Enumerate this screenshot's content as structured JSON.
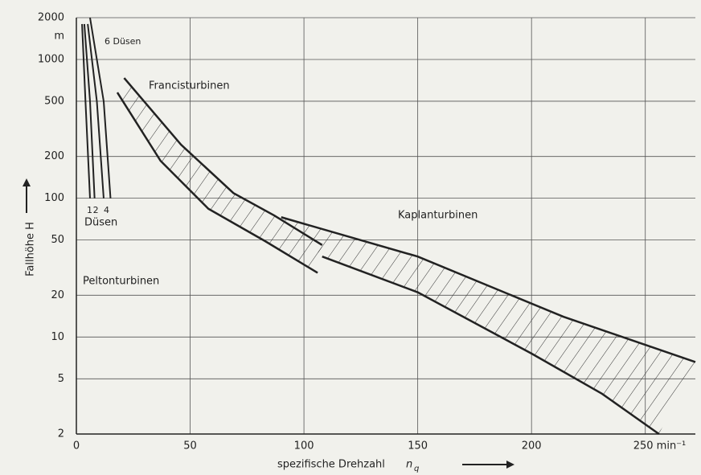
{
  "chart_data": {
    "type": "band",
    "xlabel": "spezifische Drehzahl",
    "xlabel_symbol": "n",
    "xlabel_subscript": "q",
    "ylabel": "Fallhöhe H",
    "y_unit": "m",
    "log_y": true,
    "grid": true,
    "color": "#222222",
    "xlim": [
      0,
      272
    ],
    "ylim": [
      2,
      2000
    ],
    "xticks": [
      0,
      50,
      100,
      150,
      200,
      {
        "value": 250,
        "label": "250 min⁻¹"
      }
    ],
    "yticks": [
      2,
      5,
      10,
      20,
      50,
      100,
      200,
      500,
      1000,
      2000
    ],
    "bands": [
      {
        "name": "Francisturbinen",
        "upper": {
          "x": [
            21,
            46,
            69,
            87,
            108
          ],
          "y": [
            735,
            243,
            109,
            75,
            46
          ]
        },
        "lower": {
          "x": [
            18,
            37,
            58,
            83,
            106
          ],
          "y": [
            578,
            186,
            84,
            49,
            29
          ]
        }
      },
      {
        "name": "Kaplanturbinen",
        "upper": {
          "x": [
            90,
            150,
            214,
            272
          ],
          "y": [
            73,
            38,
            14,
            6.6
          ]
        },
        "lower": {
          "x": [
            108,
            150,
            200,
            231,
            256
          ],
          "y": [
            38,
            21,
            7.6,
            3.9,
            2
          ]
        }
      }
    ],
    "lines": [
      {
        "name": "1",
        "x": [
          2.5,
          4,
          6
        ],
        "y": [
          1800,
          500,
          100
        ]
      },
      {
        "name": "2",
        "x": [
          3.5,
          6,
          8
        ],
        "y": [
          1800,
          500,
          100
        ]
      },
      {
        "name": "4",
        "x": [
          5,
          9,
          12
        ],
        "y": [
          1800,
          500,
          100
        ]
      },
      {
        "name": "6 Düsen",
        "x": [
          6,
          12,
          15
        ],
        "y": [
          2000,
          500,
          100
        ]
      }
    ],
    "annotations": [
      "Düsen",
      "Peltonturbinen"
    ]
  }
}
